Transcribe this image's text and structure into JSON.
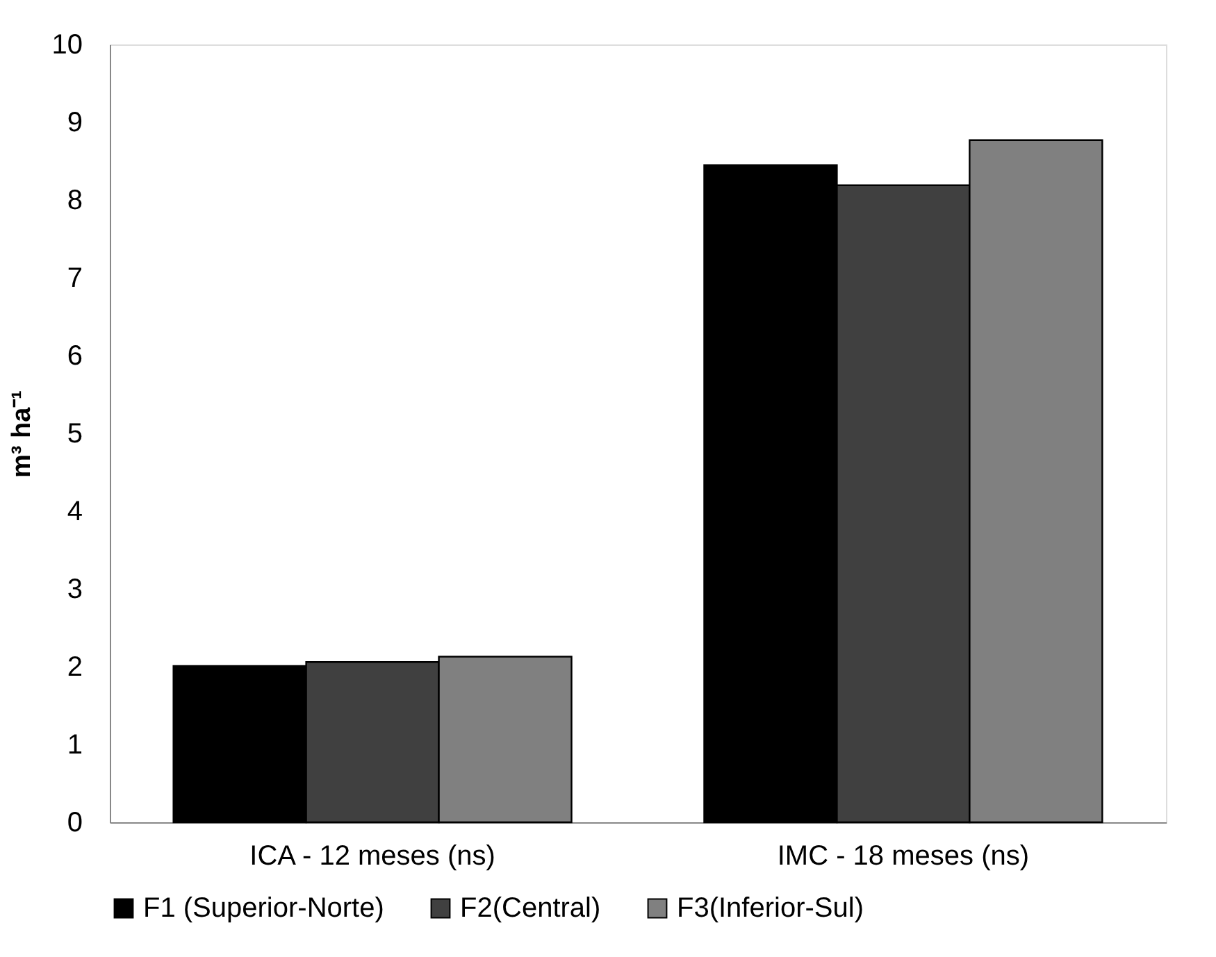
{
  "chart_data": {
    "type": "bar",
    "ylabel": "m³ ha⁻¹",
    "categories": [
      "ICA - 12 meses (ns)",
      "IMC - 18 meses (ns)"
    ],
    "series": [
      {
        "name": "F1 (Superior-Norte)",
        "color": "#000000",
        "values": [
          2.01,
          8.45
        ]
      },
      {
        "name": "F2(Central)",
        "color": "#404040",
        "values": [
          2.06,
          8.19
        ]
      },
      {
        "name": "F3(Inferior-Sul)",
        "color": "#808080",
        "values": [
          2.13,
          8.77
        ]
      }
    ],
    "ylim": [
      0,
      10
    ],
    "yticks": [
      0,
      1,
      2,
      3,
      4,
      5,
      6,
      7,
      8,
      9,
      10
    ],
    "grid": false,
    "legend": "bottom"
  }
}
